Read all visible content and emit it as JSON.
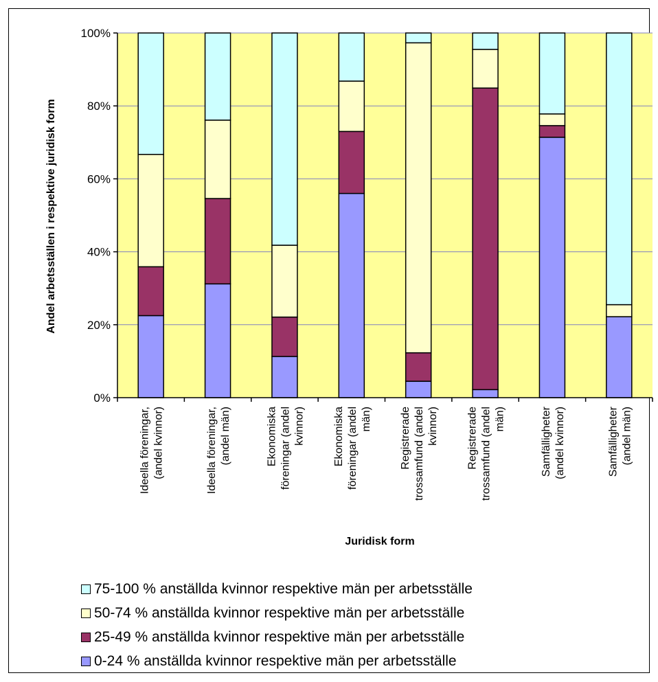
{
  "chart_data": {
    "type": "stacked-bar-100",
    "ylabel": "Andel arbetsställen i respektive juridisk form",
    "xlabel": "Juridisk form",
    "ylim": [
      0,
      100
    ],
    "yticks": [
      "0%",
      "20%",
      "40%",
      "60%",
      "80%",
      "100%"
    ],
    "grid": true,
    "legend_position": "bottom",
    "categories": [
      [
        "Ideella föreningar,",
        "(andel kvinnor)"
      ],
      [
        "Ideella föreningar,",
        "(andel män)"
      ],
      [
        "Ekonomiska",
        "föreningar (andel",
        "kvinnor)"
      ],
      [
        "Ekonomiska",
        "föreningar (andel",
        "män)"
      ],
      [
        "Registrerade",
        "trossamfund (andel",
        "kvinnor)"
      ],
      [
        "Registrerade",
        "trossamfund (andel",
        "män)"
      ],
      [
        "Samfälligheter",
        "(andel kvinnor)"
      ],
      [
        "Samfälligheter",
        "(andel män)"
      ]
    ],
    "series": [
      {
        "name": "0-24 % anställda kvinnor respektive män per arbetsställe",
        "color": "#9999ff",
        "values": [
          22.5,
          31.2,
          11.3,
          56.0,
          4.5,
          2.2,
          71.4,
          22.2
        ]
      },
      {
        "name": "25-49 % anställda kvinnor respektive män per arbetsställe",
        "color": "#993366",
        "values": [
          13.4,
          23.4,
          10.8,
          17.0,
          7.8,
          82.7,
          3.2,
          0.0
        ]
      },
      {
        "name": "50-74 % anställda kvinnor respektive män per arbetsställe",
        "color": "#ffffcc",
        "values": [
          30.8,
          21.5,
          19.7,
          13.8,
          85.0,
          10.6,
          3.2,
          3.3
        ]
      },
      {
        "name": "75-100 % anställda kvinnor respektive män per arbetsställe",
        "color": "#ccffff",
        "values": [
          33.3,
          23.9,
          58.2,
          13.2,
          2.7,
          4.5,
          22.2,
          74.5
        ]
      }
    ],
    "legend_order": [
      3,
      2,
      1,
      0
    ],
    "plot_background": "#ffff99",
    "grid_color": "#8080c0"
  }
}
